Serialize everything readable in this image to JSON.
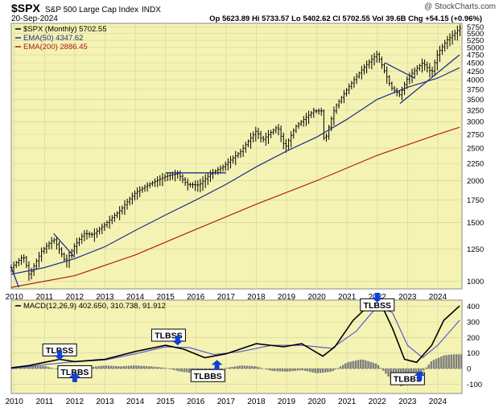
{
  "header": {
    "symbol": "$SPX",
    "name": "S&P 500 Large Cap Index",
    "exchange": "INDX",
    "watermark": "@ StockCharts.com",
    "date": "20-Sep-2024",
    "quote": "Op 5623.89  Hi 5733.57  Lo 5402.62  Cl 5702.55  Vol 39.6B  Chg +54.15 (+0.96%)"
  },
  "colors": {
    "plot_bg": "#f5f3b4",
    "grid": "#d7d59a",
    "price_bar": "#000000",
    "ema50": "#1c2e8c",
    "ema200": "#b01c1c",
    "trendline": "#1c2e8c",
    "macd_line": "#000000",
    "signal_line": "#5a5ad0",
    "histogram": "#7d7d7d",
    "arrow": "#1040d8"
  },
  "chart_data": [
    {
      "type": "line",
      "panel": "price",
      "title": "$SPX (Monthly) 5702.55",
      "y_scale": "log",
      "ylim": [
        950,
        5900
      ],
      "y_ticks": [
        1000,
        1250,
        1500,
        1750,
        2000,
        2250,
        2500,
        2750,
        3000,
        3250,
        3500,
        3750,
        4000,
        4250,
        4500,
        4750,
        5000,
        5250,
        5500,
        5750
      ],
      "x_ticks": [
        "2010",
        "2011",
        "2012",
        "2013",
        "2014",
        "2015",
        "2016",
        "2017",
        "2018",
        "2019",
        "2020",
        "2021",
        "2022",
        "2023",
        "2024"
      ],
      "x_range": [
        2009.9,
        2024.8
      ],
      "grid": true,
      "legend_position": "top-left",
      "series": [
        {
          "name": "$SPX (Monthly) 5702.55",
          "kind": "price",
          "x": [
            2009.9,
            2010.3,
            2010.5,
            2010.9,
            2011.3,
            2011.7,
            2012.0,
            2012.3,
            2012.6,
            2013.0,
            2013.5,
            2014.0,
            2014.5,
            2015.0,
            2015.4,
            2015.7,
            2016.1,
            2016.5,
            2016.9,
            2017.5,
            2018.0,
            2018.2,
            2018.7,
            2018.95,
            2019.3,
            2019.9,
            2020.15,
            2020.25,
            2020.6,
            2021.0,
            2021.5,
            2021.99,
            2022.45,
            2022.75,
            2023.0,
            2023.5,
            2023.8,
            2024.0,
            2024.3,
            2024.6,
            2024.72
          ],
          "values": [
            1100,
            1190,
            1040,
            1230,
            1340,
            1140,
            1280,
            1390,
            1380,
            1480,
            1630,
            1840,
            1960,
            2060,
            2100,
            1950,
            1940,
            2100,
            2200,
            2450,
            2820,
            2640,
            2900,
            2500,
            2900,
            3230,
            3230,
            2580,
            3300,
            3750,
            4300,
            4770,
            3800,
            3600,
            4050,
            4500,
            4200,
            4800,
            5250,
            5550,
            5702.55
          ]
        },
        {
          "name": "EMA(50) 4347.62",
          "x": [
            2009.9,
            2011.0,
            2012.0,
            2013.0,
            2014.0,
            2015.0,
            2016.0,
            2017.0,
            2018.0,
            2019.0,
            2020.0,
            2021.0,
            2022.0,
            2023.0,
            2024.0,
            2024.72
          ],
          "values": [
            1050,
            1100,
            1170,
            1270,
            1420,
            1580,
            1750,
            1950,
            2200,
            2450,
            2700,
            3050,
            3500,
            3800,
            4050,
            4347.62
          ]
        },
        {
          "name": "EMA(200) 2886.45",
          "x": [
            2009.9,
            2012.0,
            2014.0,
            2016.0,
            2018.0,
            2020.0,
            2022.0,
            2024.0,
            2024.72
          ],
          "values": [
            960,
            1040,
            1200,
            1430,
            1700,
            2000,
            2380,
            2750,
            2886.45
          ]
        }
      ],
      "trendlines": [
        {
          "x": [
            2009.9,
            2010.15
          ],
          "y": [
            1100,
            960
          ]
        },
        {
          "x": [
            2011.3,
            2012.0
          ],
          "y": [
            1390,
            1180
          ]
        },
        {
          "x": [
            2015.0,
            2017.0
          ],
          "y": [
            2110,
            2110
          ]
        },
        {
          "x": [
            2022.25,
            2023.25
          ],
          "y": [
            4500,
            4040
          ]
        },
        {
          "x": [
            2022.75,
            2024.72
          ],
          "y": [
            3400,
            4750
          ]
        }
      ]
    },
    {
      "type": "line",
      "panel": "macd",
      "title": "MACD(12,26,9) 402.650, 310.738, 91.912",
      "ylim": [
        -160,
        440
      ],
      "y_ticks": [
        -100,
        0,
        100,
        200,
        300,
        400
      ],
      "x_ticks": [
        "2010",
        "2011",
        "2012",
        "2013",
        "2014",
        "2015",
        "2016",
        "2017",
        "2018",
        "2019",
        "2020",
        "2021",
        "2022",
        "2023",
        "2024"
      ],
      "x_range": [
        2009.9,
        2024.8
      ],
      "grid": true,
      "series": [
        {
          "name": "MACD",
          "x": [
            2009.9,
            2010.5,
            2011.0,
            2011.5,
            2012.0,
            2013.0,
            2014.0,
            2015.0,
            2015.6,
            2016.3,
            2017.0,
            2018.0,
            2018.9,
            2019.5,
            2020.2,
            2020.6,
            2021.2,
            2021.8,
            2022.1,
            2022.5,
            2022.9,
            2023.3,
            2023.8,
            2024.2,
            2024.72
          ],
          "values": [
            5,
            20,
            40,
            60,
            45,
            60,
            110,
            150,
            125,
            70,
            95,
            160,
            140,
            160,
            80,
            140,
            310,
            420,
            425,
            260,
            60,
            40,
            150,
            310,
            402.65
          ]
        },
        {
          "name": "Signal",
          "x": [
            2009.9,
            2011.0,
            2012.0,
            2013.0,
            2014.0,
            2015.0,
            2015.8,
            2016.6,
            2017.5,
            2018.5,
            2019.5,
            2020.5,
            2021.3,
            2022.0,
            2022.5,
            2023.0,
            2023.5,
            2024.0,
            2024.72
          ],
          "values": [
            0,
            25,
            45,
            55,
            95,
            140,
            135,
            90,
            110,
            150,
            150,
            130,
            240,
            400,
            360,
            150,
            70,
            150,
            310.74
          ]
        },
        {
          "name": "Histogram",
          "kind": "histogram",
          "x": [
            2010.0,
            2010.5,
            2011.0,
            2011.5,
            2012.0,
            2012.5,
            2013.0,
            2013.5,
            2014.0,
            2014.5,
            2015.0,
            2015.5,
            2016.0,
            2016.5,
            2017.0,
            2017.5,
            2018.0,
            2018.5,
            2019.0,
            2019.5,
            2020.0,
            2020.5,
            2021.0,
            2021.5,
            2022.0,
            2022.5,
            2022.8,
            2023.2,
            2023.5,
            2023.8,
            2024.2,
            2024.5
          ],
          "values": [
            10,
            15,
            18,
            -10,
            -20,
            10,
            20,
            15,
            20,
            15,
            5,
            -20,
            -30,
            -25,
            5,
            20,
            15,
            -15,
            -20,
            -10,
            -30,
            -20,
            40,
            60,
            30,
            -80,
            -115,
            -80,
            -20,
            50,
            85,
            92
          ]
        }
      ],
      "annotations": [
        {
          "label": "TLBSS",
          "x": 2011.5,
          "y": 120,
          "arrow": "down",
          "arrow_x": 2011.5,
          "arrow_y": 55
        },
        {
          "label": "TLBBS",
          "x": 2012.0,
          "y": -20,
          "arrow": "up",
          "arrow_x": 2012.0,
          "arrow_y": -25
        },
        {
          "label": "TLBSS",
          "x": 2015.1,
          "y": 215,
          "arrow": "down",
          "arrow_x": 2015.4,
          "arrow_y": 150
        },
        {
          "label": "TLBBS",
          "x": 2016.4,
          "y": -45,
          "arrow": "up",
          "arrow_x": 2016.7,
          "arrow_y": 55
        },
        {
          "label": "TLBSS",
          "x": 2022.0,
          "y": 410,
          "arrow": "down",
          "arrow_x": 2022.0,
          "arrow_y": 425
        },
        {
          "label": "TLBBS",
          "x": 2023.0,
          "y": -65,
          "arrow": "up",
          "arrow_x": 2023.4,
          "arrow_y": -15
        }
      ]
    }
  ]
}
